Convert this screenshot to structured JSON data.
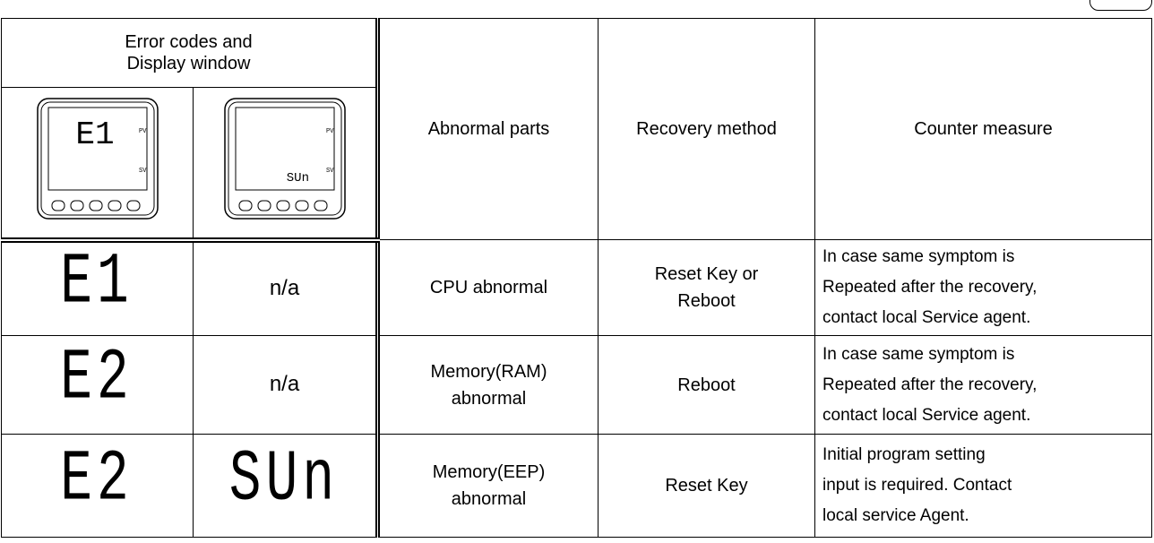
{
  "header": {
    "group": [
      "Error codes and",
      "Display window"
    ],
    "columns": [
      "Abnormal parts",
      "Recovery method",
      "Counter measure"
    ],
    "displays": [
      {
        "main": "E1",
        "sub": ""
      },
      {
        "main": "",
        "sub": "SUn"
      }
    ],
    "pv": "PV",
    "sv": "SV"
  },
  "rows": [
    {
      "code": "E1",
      "display": "n/a",
      "parts": [
        "CPU abnormal"
      ],
      "recovery": [
        "Reset Key or",
        "Reboot"
      ],
      "counter": [
        "In case same symptom is",
        "Repeated after the recovery,",
        "contact local Service agent."
      ]
    },
    {
      "code": "E2",
      "display": "n/a",
      "parts": [
        "Memory(RAM)",
        "abnormal"
      ],
      "recovery": [
        "Reboot"
      ],
      "counter": [
        "In case same symptom is",
        "Repeated after the recovery,",
        "contact local Service agent."
      ]
    },
    {
      "code": "E2",
      "display": "SUn",
      "parts": [
        "Memory(EEP)",
        "abnormal"
      ],
      "recovery": [
        "Reset Key"
      ],
      "counter": [
        "Initial program setting",
        "input is required. Contact",
        "local service Agent."
      ]
    }
  ]
}
